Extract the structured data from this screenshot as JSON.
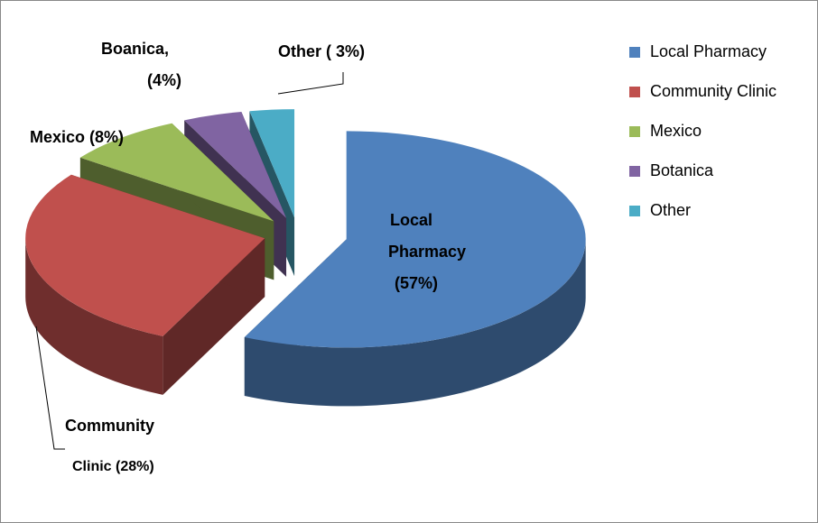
{
  "chart_data": {
    "type": "pie3d",
    "categories": [
      "Local Pharmacy",
      "Community Clinic",
      "Mexico",
      "Botanica",
      "Other"
    ],
    "values": [
      57,
      28,
      8,
      4,
      3
    ],
    "value_labels": [
      [
        "Local",
        "Pharmacy",
        "(57%)"
      ],
      [
        "Community",
        "Clinic  (28%)"
      ],
      [
        "Mexico (8%)"
      ],
      [
        "Boanica,",
        "(4%)"
      ],
      [
        "Other ( 3%)"
      ]
    ],
    "colors": [
      "#4f81bd",
      "#c0504d",
      "#9bbb59",
      "#8064a2",
      "#4bacc6"
    ],
    "legend": "right"
  }
}
